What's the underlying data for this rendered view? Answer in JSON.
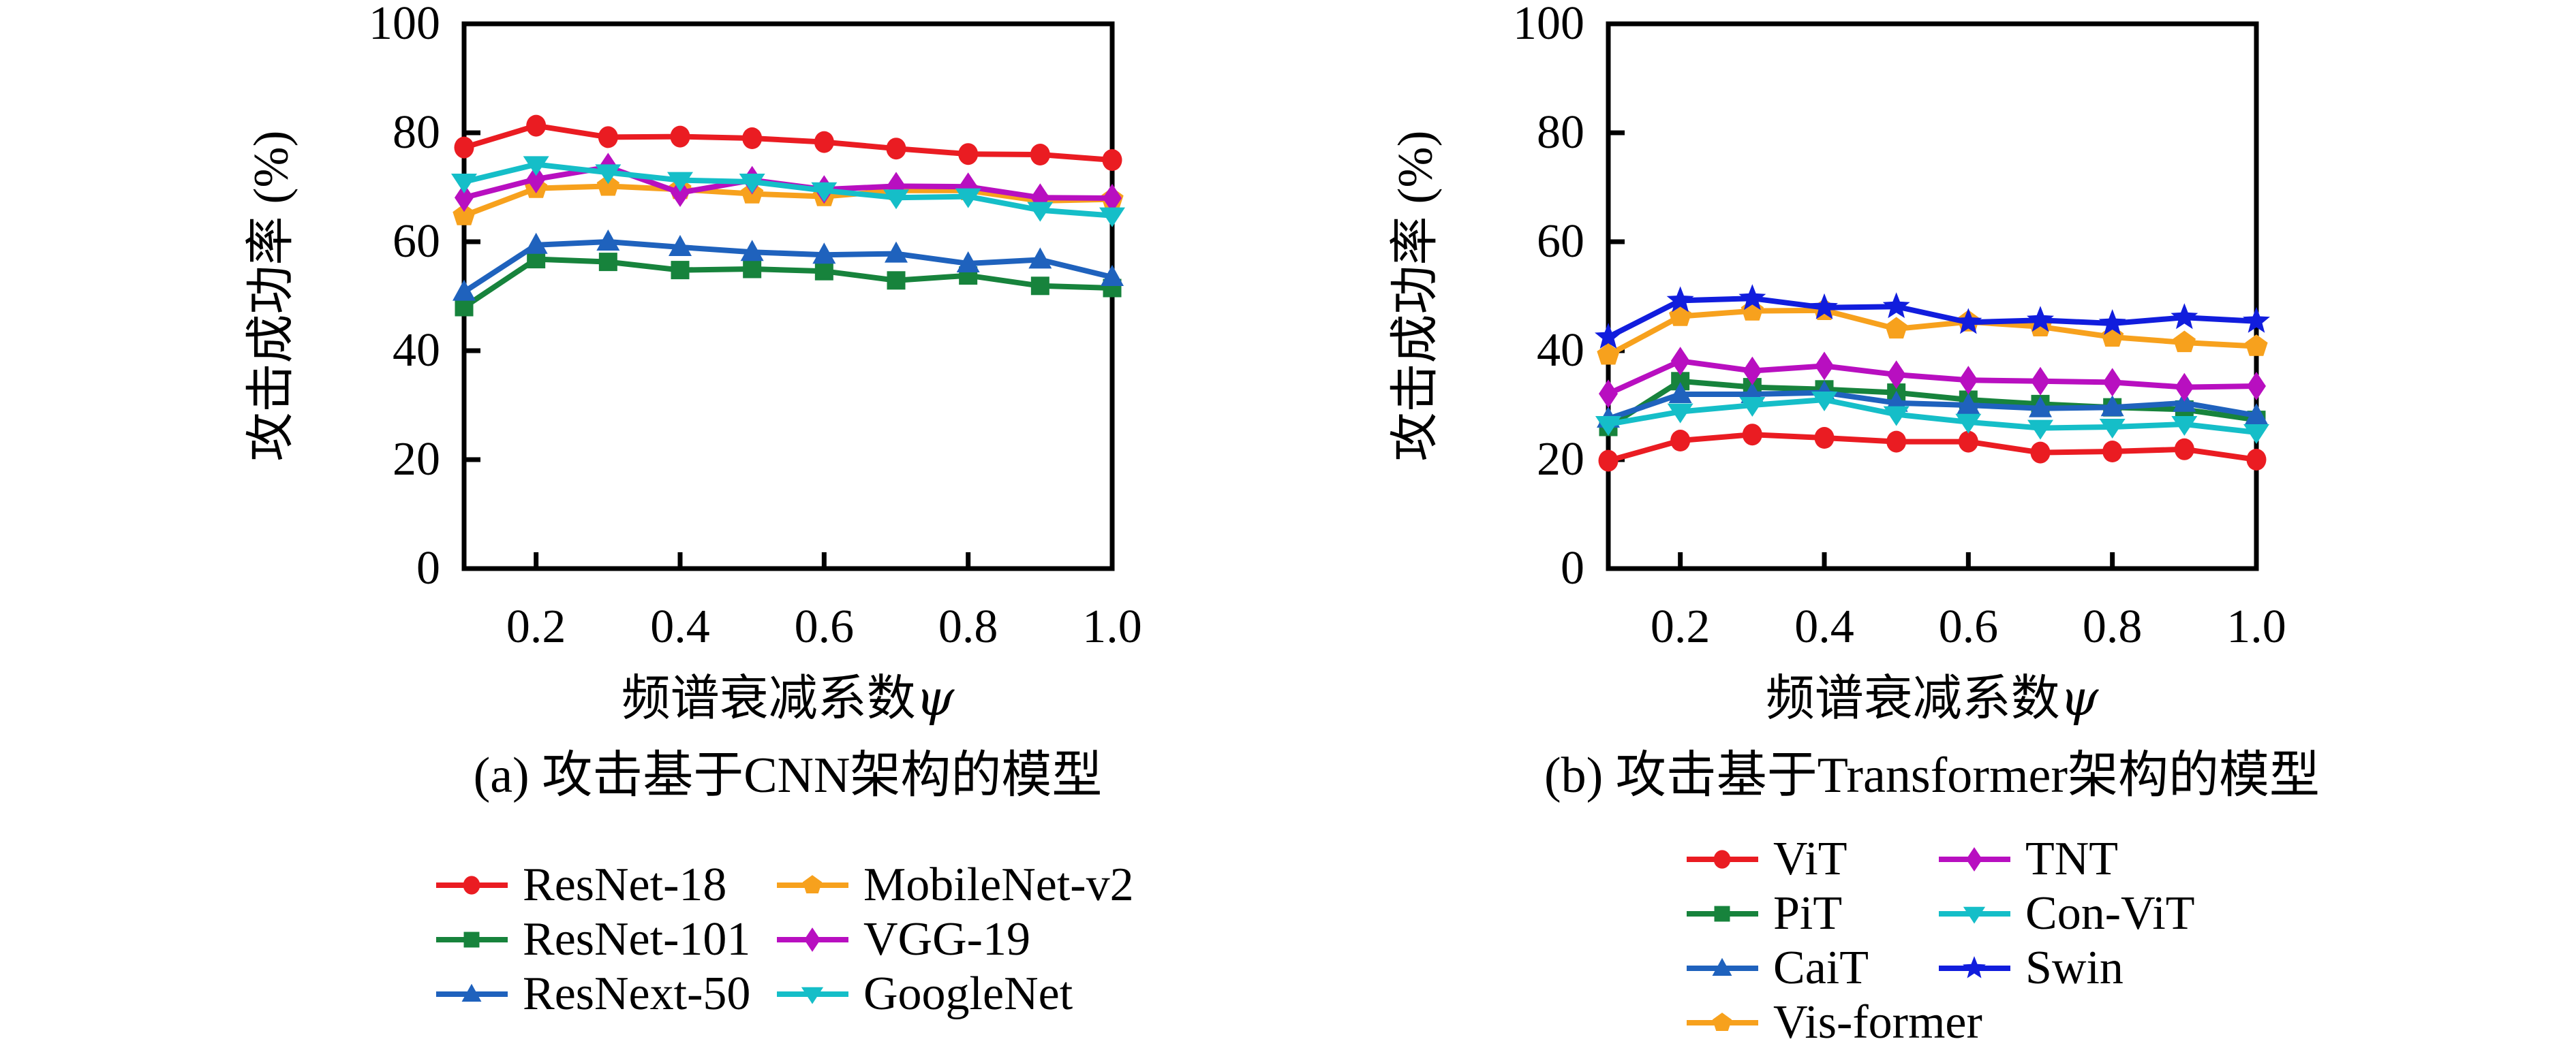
{
  "page": {
    "background": "#ffffff"
  },
  "chart_data": [
    {
      "type": "line",
      "caption": "(a) 攻击基于CNN架构的模型",
      "xlabel_text": "频谱衰减系数",
      "xlabel_symbol": "ψ",
      "ylabel": "攻击成功率 (%)",
      "x": [
        0.1,
        0.2,
        0.3,
        0.4,
        0.5,
        0.6,
        0.7,
        0.8,
        0.9,
        1.0
      ],
      "xlim": [
        0.1,
        1.0
      ],
      "ylim": [
        0,
        100
      ],
      "xticks": [
        "0.2",
        "0.4",
        "0.6",
        "0.8",
        "1.0"
      ],
      "yticks": [
        0,
        20,
        40,
        60,
        80,
        100
      ],
      "grid": false,
      "legend_position": "below",
      "series": [
        {
          "name": "ResNet-18",
          "color": "#ea1c22",
          "marker": "circle",
          "values": [
            77.3,
            81.3,
            79.2,
            79.3,
            79.0,
            78.3,
            77.1,
            76.1,
            76.0,
            75.0
          ]
        },
        {
          "name": "ResNet-101",
          "color": "#17833c",
          "marker": "square",
          "values": [
            48.0,
            56.8,
            56.3,
            54.8,
            55.0,
            54.6,
            52.9,
            53.8,
            51.9,
            51.5
          ]
        },
        {
          "name": "ResNext-50",
          "color": "#1f62bd",
          "marker": "triangle-up",
          "values": [
            50.8,
            59.4,
            60.0,
            59.0,
            58.1,
            57.6,
            57.8,
            56.0,
            56.7,
            53.5
          ]
        },
        {
          "name": "MobileNet-v2",
          "color": "#f7a11d",
          "marker": "pentagon",
          "values": [
            64.8,
            69.8,
            70.2,
            69.6,
            68.8,
            68.3,
            69.4,
            69.4,
            67.5,
            67.8
          ]
        },
        {
          "name": "VGG-19",
          "color": "#b80fc0",
          "marker": "diamond",
          "values": [
            68.1,
            71.5,
            73.7,
            69.0,
            71.3,
            69.6,
            70.2,
            70.1,
            68.1,
            68.0
          ]
        },
        {
          "name": "GoogleNet",
          "color": "#15bec8",
          "marker": "triangle-down",
          "values": [
            71.0,
            74.2,
            72.7,
            71.3,
            71.0,
            69.4,
            68.1,
            68.3,
            65.8,
            64.8
          ]
        }
      ],
      "legend_columns": [
        [
          "ResNet-18",
          "ResNet-101",
          "ResNext-50"
        ],
        [
          "MobileNet-v2",
          "VGG-19",
          "GoogleNet"
        ]
      ]
    },
    {
      "type": "line",
      "caption": "(b) 攻击基于Transformer架构的模型",
      "xlabel_text": "频谱衰减系数",
      "xlabel_symbol": "ψ",
      "ylabel": "攻击成功率 (%)",
      "x": [
        0.1,
        0.2,
        0.3,
        0.4,
        0.5,
        0.6,
        0.7,
        0.8,
        0.9,
        1.0
      ],
      "xlim": [
        0.1,
        1.0
      ],
      "ylim": [
        0,
        100
      ],
      "xticks": [
        "0.2",
        "0.4",
        "0.6",
        "0.8",
        "1.0"
      ],
      "yticks": [
        0,
        20,
        40,
        60,
        80,
        100
      ],
      "grid": false,
      "legend_position": "below",
      "series": [
        {
          "name": "ViT",
          "color": "#ea1c22",
          "marker": "circle",
          "values": [
            19.8,
            23.5,
            24.6,
            24.0,
            23.3,
            23.3,
            21.3,
            21.5,
            21.9,
            20.0
          ]
        },
        {
          "name": "PiT",
          "color": "#17833c",
          "marker": "square",
          "values": [
            26.0,
            34.4,
            33.3,
            32.9,
            32.3,
            31.0,
            30.2,
            29.6,
            29.2,
            27.3
          ]
        },
        {
          "name": "CaiT",
          "color": "#1f62bd",
          "marker": "triangle-up",
          "values": [
            27.5,
            32.0,
            32.0,
            32.3,
            30.4,
            30.0,
            29.4,
            29.6,
            30.4,
            28.1
          ]
        },
        {
          "name": "Vis-former",
          "color": "#f7a11d",
          "marker": "pentagon",
          "values": [
            39.2,
            46.3,
            47.3,
            47.4,
            44.0,
            45.3,
            44.4,
            42.5,
            41.5,
            40.8
          ]
        },
        {
          "name": "TNT",
          "color": "#b80fc0",
          "marker": "diamond",
          "values": [
            32.1,
            38.1,
            36.3,
            37.2,
            35.6,
            34.6,
            34.4,
            34.2,
            33.3,
            33.5
          ]
        },
        {
          "name": "Con-ViT",
          "color": "#15bec8",
          "marker": "triangle-down",
          "values": [
            26.5,
            28.8,
            30.0,
            31.0,
            28.3,
            26.9,
            25.8,
            26.0,
            26.5,
            25.0
          ]
        },
        {
          "name": "Swin",
          "color": "#111ddd",
          "marker": "star",
          "values": [
            42.5,
            49.2,
            49.6,
            47.9,
            48.1,
            45.2,
            45.6,
            45.0,
            46.1,
            45.4
          ]
        }
      ],
      "legend_columns": [
        [
          "ViT",
          "PiT",
          "CaiT",
          "Vis-former"
        ],
        [
          "TNT",
          "Con-ViT",
          "Swin"
        ]
      ]
    }
  ]
}
